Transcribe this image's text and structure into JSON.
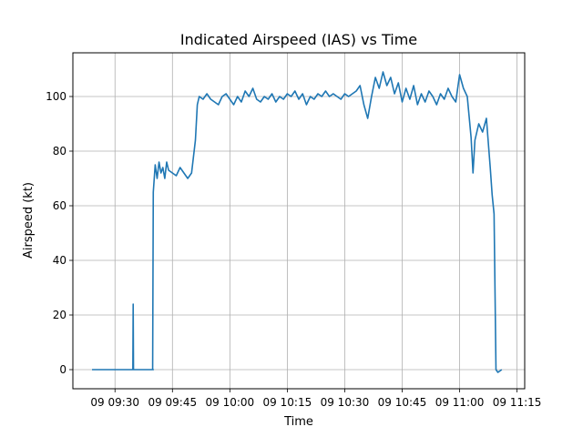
{
  "chart_data": {
    "type": "line",
    "title": "Indicated Airspeed (IAS) vs Time",
    "xlabel": "Time",
    "ylabel": "Airspeed (kt)",
    "grid": true,
    "x_tick_labels": [
      "09 09:30",
      "09 09:45",
      "09 10:00",
      "09 10:15",
      "09 10:30",
      "09 10:45",
      "09 11:00",
      "09 11:15"
    ],
    "y_tick_labels": [
      "0",
      "20",
      "40",
      "60",
      "80",
      "100"
    ],
    "xlim": [
      "09:19:00",
      "11:17:00"
    ],
    "ylim": [
      -7,
      116
    ],
    "colors": {
      "series": "#1f77b4",
      "grid": "#b0b0b0"
    },
    "series": [
      {
        "name": "",
        "points": [
          [
            "09:24:00",
            0
          ],
          [
            "09:30:00",
            0
          ],
          [
            "09:34:00",
            0
          ],
          [
            "09:34:40",
            0
          ],
          [
            "09:34:45",
            24
          ],
          [
            "09:34:50",
            0
          ],
          [
            "09:35:00",
            0
          ],
          [
            "09:40:00",
            0
          ],
          [
            "09:39:50",
            0
          ],
          [
            "09:40:00",
            65
          ],
          [
            "09:40:30",
            75
          ],
          [
            "09:41:00",
            70
          ],
          [
            "09:41:30",
            76
          ],
          [
            "09:42:00",
            72
          ],
          [
            "09:42:30",
            74
          ],
          [
            "09:43:00",
            70
          ],
          [
            "09:43:30",
            76
          ],
          [
            "09:44:00",
            73
          ],
          [
            "09:45:00",
            72
          ],
          [
            "09:46:00",
            71
          ],
          [
            "09:47:00",
            74
          ],
          [
            "09:48:00",
            72
          ],
          [
            "09:49:00",
            70
          ],
          [
            "09:50:00",
            72
          ],
          [
            "09:51:00",
            84
          ],
          [
            "09:51:30",
            97
          ],
          [
            "09:52:00",
            100
          ],
          [
            "09:53:00",
            99
          ],
          [
            "09:54:00",
            101
          ],
          [
            "09:55:00",
            99
          ],
          [
            "09:56:00",
            98
          ],
          [
            "09:57:00",
            97
          ],
          [
            "09:58:00",
            100
          ],
          [
            "09:59:00",
            101
          ],
          [
            "10:00:00",
            99
          ],
          [
            "10:01:00",
            97
          ],
          [
            "10:02:00",
            100
          ],
          [
            "10:03:00",
            98
          ],
          [
            "10:04:00",
            102
          ],
          [
            "10:05:00",
            100
          ],
          [
            "10:06:00",
            103
          ],
          [
            "10:07:00",
            99
          ],
          [
            "10:08:00",
            98
          ],
          [
            "10:09:00",
            100
          ],
          [
            "10:10:00",
            99
          ],
          [
            "10:11:00",
            101
          ],
          [
            "10:12:00",
            98
          ],
          [
            "10:13:00",
            100
          ],
          [
            "10:14:00",
            99
          ],
          [
            "10:15:00",
            101
          ],
          [
            "10:16:00",
            100
          ],
          [
            "10:17:00",
            102
          ],
          [
            "10:18:00",
            99
          ],
          [
            "10:19:00",
            101
          ],
          [
            "10:20:00",
            97
          ],
          [
            "10:21:00",
            100
          ],
          [
            "10:22:00",
            99
          ],
          [
            "10:23:00",
            101
          ],
          [
            "10:24:00",
            100
          ],
          [
            "10:25:00",
            102
          ],
          [
            "10:26:00",
            100
          ],
          [
            "10:27:00",
            101
          ],
          [
            "10:28:00",
            100
          ],
          [
            "10:29:00",
            99
          ],
          [
            "10:30:00",
            101
          ],
          [
            "10:31:00",
            100
          ],
          [
            "10:32:00",
            101
          ],
          [
            "10:33:00",
            102
          ],
          [
            "10:34:00",
            104
          ],
          [
            "10:35:00",
            97
          ],
          [
            "10:36:00",
            92
          ],
          [
            "10:37:00",
            100
          ],
          [
            "10:38:00",
            107
          ],
          [
            "10:39:00",
            103
          ],
          [
            "10:40:00",
            109
          ],
          [
            "10:41:00",
            104
          ],
          [
            "10:42:00",
            107
          ],
          [
            "10:43:00",
            101
          ],
          [
            "10:44:00",
            105
          ],
          [
            "10:45:00",
            98
          ],
          [
            "10:46:00",
            103
          ],
          [
            "10:47:00",
            99
          ],
          [
            "10:48:00",
            104
          ],
          [
            "10:49:00",
            97
          ],
          [
            "10:50:00",
            101
          ],
          [
            "10:51:00",
            98
          ],
          [
            "10:52:00",
            102
          ],
          [
            "10:53:00",
            100
          ],
          [
            "10:54:00",
            97
          ],
          [
            "10:55:00",
            101
          ],
          [
            "10:56:00",
            99
          ],
          [
            "10:57:00",
            103
          ],
          [
            "10:58:00",
            100
          ],
          [
            "10:59:00",
            98
          ],
          [
            "11:00:00",
            108
          ],
          [
            "11:01:00",
            103
          ],
          [
            "11:02:00",
            100
          ],
          [
            "11:03:00",
            85
          ],
          [
            "11:03:30",
            72
          ],
          [
            "11:04:00",
            84
          ],
          [
            "11:05:00",
            90
          ],
          [
            "11:06:00",
            87
          ],
          [
            "11:07:00",
            92
          ],
          [
            "11:08:00",
            74
          ],
          [
            "11:08:30",
            64
          ],
          [
            "11:09:00",
            57
          ],
          [
            "11:09:30",
            0
          ],
          [
            "11:10:00",
            -1
          ],
          [
            "11:11:00",
            0
          ]
        ]
      }
    ]
  }
}
